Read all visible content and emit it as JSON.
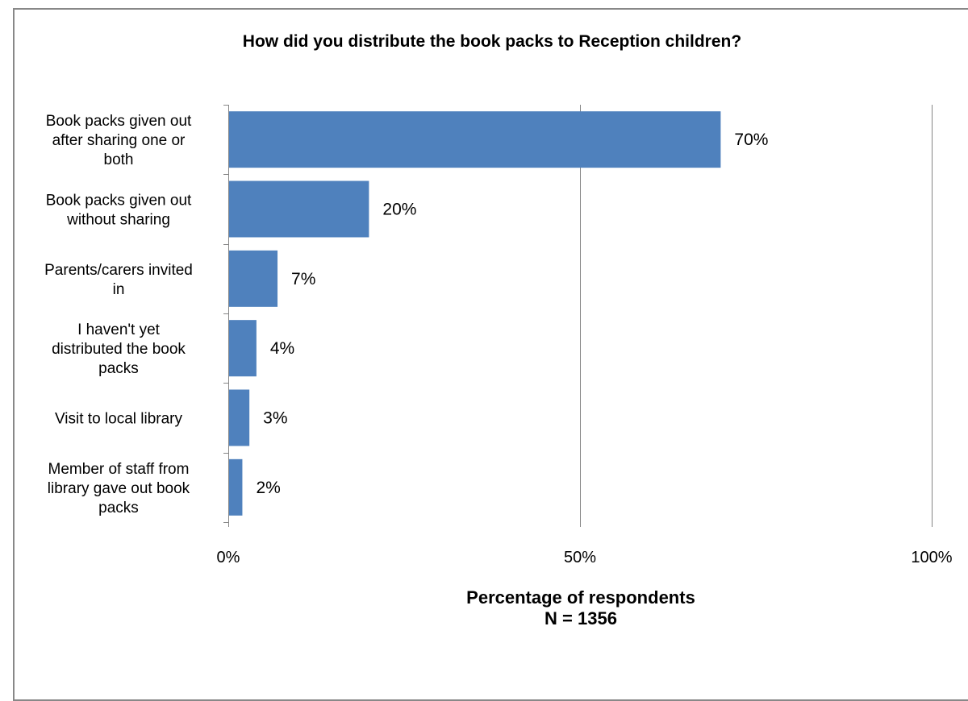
{
  "chart_data": {
    "type": "bar",
    "orientation": "horizontal",
    "title": "How did you distribute the book packs to Reception children?",
    "categories": [
      [
        "Book packs given out",
        "after sharing one or",
        "both"
      ],
      [
        "Book packs given out",
        "without sharing"
      ],
      [
        "Parents/carers invited",
        "in"
      ],
      [
        "I haven't yet",
        "distributed the book",
        "packs"
      ],
      [
        "Visit to local library"
      ],
      [
        "Member of staff from",
        "library gave out book",
        "packs"
      ]
    ],
    "values": [
      70,
      20,
      7,
      4,
      3,
      2
    ],
    "value_labels": [
      "70%",
      "20%",
      "7%",
      "4%",
      "3%",
      "2%"
    ],
    "xlim": [
      0,
      100
    ],
    "x_ticks": [
      0,
      50,
      100
    ],
    "x_tick_labels": [
      "0%",
      "50%",
      "100%"
    ],
    "xlabel": [
      "Percentage of respondents",
      "N = 1356"
    ],
    "ylabel": "",
    "grid": "vertical",
    "legend": "none",
    "colors": {
      "bar": "#4F81BD",
      "grid": "#868686",
      "axis": "#868686"
    }
  }
}
